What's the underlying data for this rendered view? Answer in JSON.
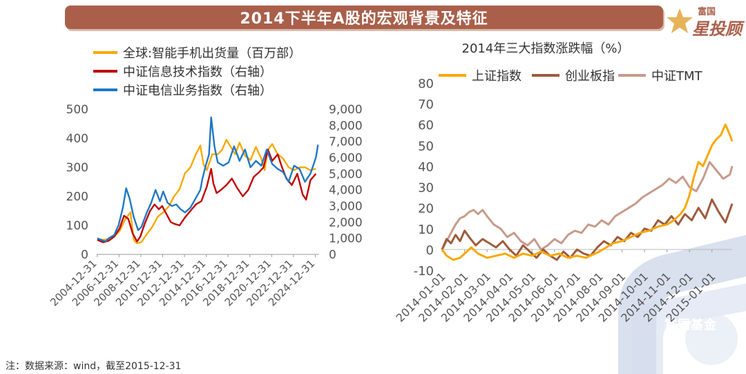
{
  "header": {
    "title": "2014下半年A股的宏观背景及特征"
  },
  "logo": {
    "top_text": "富国",
    "main_text": "星投顾",
    "watermark_text": "富国基金"
  },
  "footnote": "注：数据来源：wind，截至2015-12-31",
  "colors": {
    "header_bg": "#a95f4a",
    "orange": "#f9a800",
    "red": "#c00000",
    "blue": "#1f77c4",
    "brown": "#9e5a3c",
    "pink": "#c79a8b"
  },
  "chart_data": [
    {
      "type": "line",
      "title": "",
      "legend": {
        "placement": "top-left",
        "entries": [
          "全球:智能手机出货量（百万部）",
          "中证信息技术指数（右轴）",
          "中证电信业务指数（右轴）"
        ]
      },
      "x_tick_labels": [
        "2004-12-31",
        "2006-12-31",
        "2008-12-31",
        "2010-12-31",
        "2012-12-31",
        "2014-12-31",
        "2016-12-31",
        "2018-12-31",
        "2020-12-31",
        "2022-12-31",
        "2024-12-31"
      ],
      "left_axis": {
        "ylim": [
          0,
          500
        ],
        "ticks": [
          "0",
          "100",
          "200",
          "300",
          "400",
          "500"
        ]
      },
      "right_axis": {
        "ylim": [
          0,
          9000
        ],
        "ticks": [
          "0",
          "1,000",
          "2,000",
          "3,000",
          "4,000",
          "5,000",
          "6,000",
          "7,000",
          "8,000",
          "9,000"
        ]
      },
      "x_range": [
        2004.9,
        2025.3
      ],
      "grid": false,
      "series": [
        {
          "name": "全球:智能手机出货量（百万部）",
          "axis": "left",
          "color": "#f9a800",
          "x": [
            2004.95,
            2005.5,
            2006.0,
            2006.5,
            2007.0,
            2007.5,
            2008.0,
            2008.3,
            2008.6,
            2009.0,
            2009.5,
            2010.0,
            2010.5,
            2011.0,
            2011.5,
            2012.0,
            2012.5,
            2013.0,
            2013.5,
            2014.0,
            2014.4,
            2014.7,
            2015.0,
            2015.5,
            2016.0,
            2016.4,
            2016.8,
            2017.2,
            2017.6,
            2018.0,
            2018.5,
            2019.0,
            2019.5,
            2020.0,
            2020.3,
            2020.6,
            2021.0,
            2021.5,
            2022.0,
            2022.5,
            2023.0,
            2023.5,
            2024.0,
            2024.5,
            2025.0
          ],
          "values": [
            55,
            50,
            52,
            62,
            80,
            120,
            145,
            50,
            38,
            42,
            70,
            95,
            130,
            145,
            165,
            200,
            225,
            280,
            300,
            345,
            375,
            310,
            290,
            345,
            345,
            360,
            395,
            370,
            345,
            385,
            340,
            325,
            370,
            330,
            290,
            360,
            380,
            345,
            330,
            300,
            290,
            300,
            300,
            290,
            295
          ]
        },
        {
          "name": "中证信息技术指数（右轴）",
          "axis": "right",
          "color": "#c00000",
          "x": [
            2004.95,
            2005.5,
            2006.0,
            2006.5,
            2007.0,
            2007.4,
            2007.8,
            2008.2,
            2008.6,
            2008.9,
            2009.3,
            2009.8,
            2010.2,
            2010.6,
            2010.9,
            2011.3,
            2011.7,
            2012.0,
            2012.5,
            2013.0,
            2013.5,
            2014.0,
            2014.5,
            2015.0,
            2015.4,
            2015.6,
            2015.9,
            2016.3,
            2016.8,
            2017.3,
            2017.8,
            2018.3,
            2018.8,
            2019.3,
            2019.8,
            2020.2,
            2020.6,
            2021.0,
            2021.5,
            2021.9,
            2022.3,
            2022.8,
            2023.3,
            2023.8,
            2024.1,
            2024.5,
            2025.0
          ],
          "values": [
            900,
            750,
            850,
            1100,
            1600,
            2400,
            2200,
            1300,
            800,
            1100,
            1900,
            2700,
            3100,
            2800,
            3000,
            2500,
            2000,
            1900,
            1800,
            2300,
            2700,
            3100,
            3300,
            4200,
            5300,
            4400,
            3800,
            4000,
            4300,
            4700,
            4100,
            3600,
            4000,
            4800,
            5100,
            5400,
            6500,
            5800,
            6200,
            5400,
            4700,
            4300,
            5000,
            3700,
            3400,
            4600,
            5000
          ]
        },
        {
          "name": "中证电信业务指数（右轴）",
          "axis": "right",
          "color": "#1f77c4",
          "x": [
            2004.95,
            2005.3,
            2005.7,
            2006.0,
            2006.5,
            2006.9,
            2007.3,
            2007.6,
            2007.9,
            2008.3,
            2008.7,
            2009.0,
            2009.5,
            2009.9,
            2010.3,
            2010.7,
            2011.0,
            2011.4,
            2011.8,
            2012.2,
            2012.6,
            2013.0,
            2013.5,
            2014.0,
            2014.4,
            2014.6,
            2014.9,
            2015.2,
            2015.4,
            2015.7,
            2016.0,
            2016.5,
            2017.0,
            2017.5,
            2018.0,
            2018.5,
            2019.0,
            2019.5,
            2020.0,
            2020.5,
            2021.0,
            2021.5,
            2022.0,
            2022.5,
            2023.0,
            2023.5,
            2024.0,
            2024.5,
            2025.0,
            2025.2
          ],
          "values": [
            1000,
            900,
            800,
            1000,
            1200,
            1800,
            2900,
            4100,
            3500,
            2300,
            1500,
            1700,
            2600,
            3200,
            4000,
            3300,
            3900,
            3200,
            3000,
            3100,
            2800,
            2600,
            2900,
            3500,
            4000,
            4700,
            5500,
            6200,
            8500,
            6700,
            5700,
            5500,
            5700,
            6700,
            5800,
            6500,
            5400,
            5800,
            5500,
            6500,
            5600,
            5300,
            5100,
            4500,
            5500,
            5300,
            4500,
            5000,
            6000,
            6800
          ]
        }
      ]
    },
    {
      "type": "line",
      "title": "2014年三大指数涨跌幅（%）",
      "legend": {
        "placement": "top",
        "entries": [
          "上证指数",
          "创业板指",
          "中证TMT"
        ]
      },
      "x_tick_labels": [
        "2014-01-01",
        "2014-02-01",
        "2014-03-01",
        "2014-04-01",
        "2014-05-01",
        "2014-06-01",
        "2014-07-01",
        "2014-08-01",
        "2014-09-01",
        "2014-10-01",
        "2014-11-01",
        "2014-12-01",
        "2015-01-01"
      ],
      "y_axis": {
        "ylim": [
          -10,
          80
        ],
        "ticks": [
          "-10",
          "0",
          "10",
          "20",
          "30",
          "40",
          "50",
          "60",
          "70",
          "80"
        ]
      },
      "x_range": [
        0,
        12.9
      ],
      "grid": false,
      "series": [
        {
          "name": "上证指数",
          "color": "#f9a800",
          "x": [
            0,
            0.2,
            0.5,
            0.8,
            1.0,
            1.3,
            1.6,
            2.0,
            2.4,
            2.8,
            3.2,
            3.6,
            4.0,
            4.4,
            4.8,
            5.2,
            5.6,
            6.0,
            6.4,
            6.8,
            7.0,
            7.3,
            7.6,
            8.0,
            8.4,
            8.8,
            9.2,
            9.6,
            10.0,
            10.3,
            10.6,
            10.8,
            11.0,
            11.2,
            11.4,
            11.6,
            11.8,
            12.0,
            12.2,
            12.4,
            12.6,
            12.8,
            12.9
          ],
          "values": [
            0,
            -3,
            -5,
            -4,
            -2,
            1,
            -2,
            -4,
            -3,
            -2,
            -4,
            -2,
            -3,
            -1,
            -3,
            -2,
            -4,
            -3,
            -4,
            -2,
            -1,
            1,
            3,
            4,
            6,
            8,
            9,
            11,
            12,
            14,
            17,
            20,
            26,
            35,
            42,
            40,
            45,
            50,
            53,
            55,
            60,
            55,
            52
          ]
        },
        {
          "name": "创业板指",
          "color": "#9e5a3c",
          "x": [
            0,
            0.2,
            0.4,
            0.6,
            0.8,
            1.0,
            1.2,
            1.5,
            1.8,
            2.1,
            2.4,
            2.7,
            3.0,
            3.3,
            3.6,
            3.9,
            4.2,
            4.5,
            4.8,
            5.1,
            5.4,
            5.7,
            6.0,
            6.3,
            6.6,
            6.9,
            7.2,
            7.5,
            7.8,
            8.1,
            8.4,
            8.7,
            9.0,
            9.3,
            9.6,
            9.9,
            10.2,
            10.5,
            10.8,
            11.1,
            11.4,
            11.7,
            12.0,
            12.3,
            12.6,
            12.9
          ],
          "values": [
            0,
            5,
            3,
            7,
            4,
            9,
            6,
            2,
            5,
            3,
            1,
            4,
            0,
            -3,
            2,
            -1,
            -4,
            0,
            -3,
            -5,
            -1,
            -4,
            0,
            -2,
            -3,
            1,
            4,
            2,
            6,
            4,
            8,
            6,
            10,
            9,
            14,
            12,
            16,
            12,
            17,
            14,
            20,
            15,
            24,
            18,
            13,
            22
          ]
        },
        {
          "name": "中证TMT",
          "color": "#c79a8b",
          "x": [
            0,
            0.2,
            0.4,
            0.6,
            0.8,
            1.0,
            1.2,
            1.4,
            1.6,
            1.8,
            2.0,
            2.3,
            2.6,
            2.9,
            3.2,
            3.5,
            3.8,
            4.1,
            4.4,
            4.7,
            5.0,
            5.3,
            5.6,
            5.9,
            6.2,
            6.5,
            6.8,
            7.1,
            7.4,
            7.7,
            8.0,
            8.3,
            8.6,
            8.9,
            9.2,
            9.5,
            9.8,
            10.1,
            10.4,
            10.7,
            11.0,
            11.3,
            11.6,
            11.9,
            12.2,
            12.5,
            12.8,
            12.9
          ],
          "values": [
            0,
            4,
            8,
            12,
            15,
            16,
            18,
            19,
            17,
            19,
            16,
            12,
            10,
            6,
            8,
            4,
            2,
            5,
            0,
            2,
            5,
            3,
            7,
            9,
            8,
            12,
            11,
            14,
            12,
            16,
            18,
            20,
            22,
            25,
            27,
            29,
            31,
            34,
            32,
            35,
            30,
            28,
            34,
            42,
            38,
            34,
            36,
            40
          ]
        }
      ]
    }
  ]
}
